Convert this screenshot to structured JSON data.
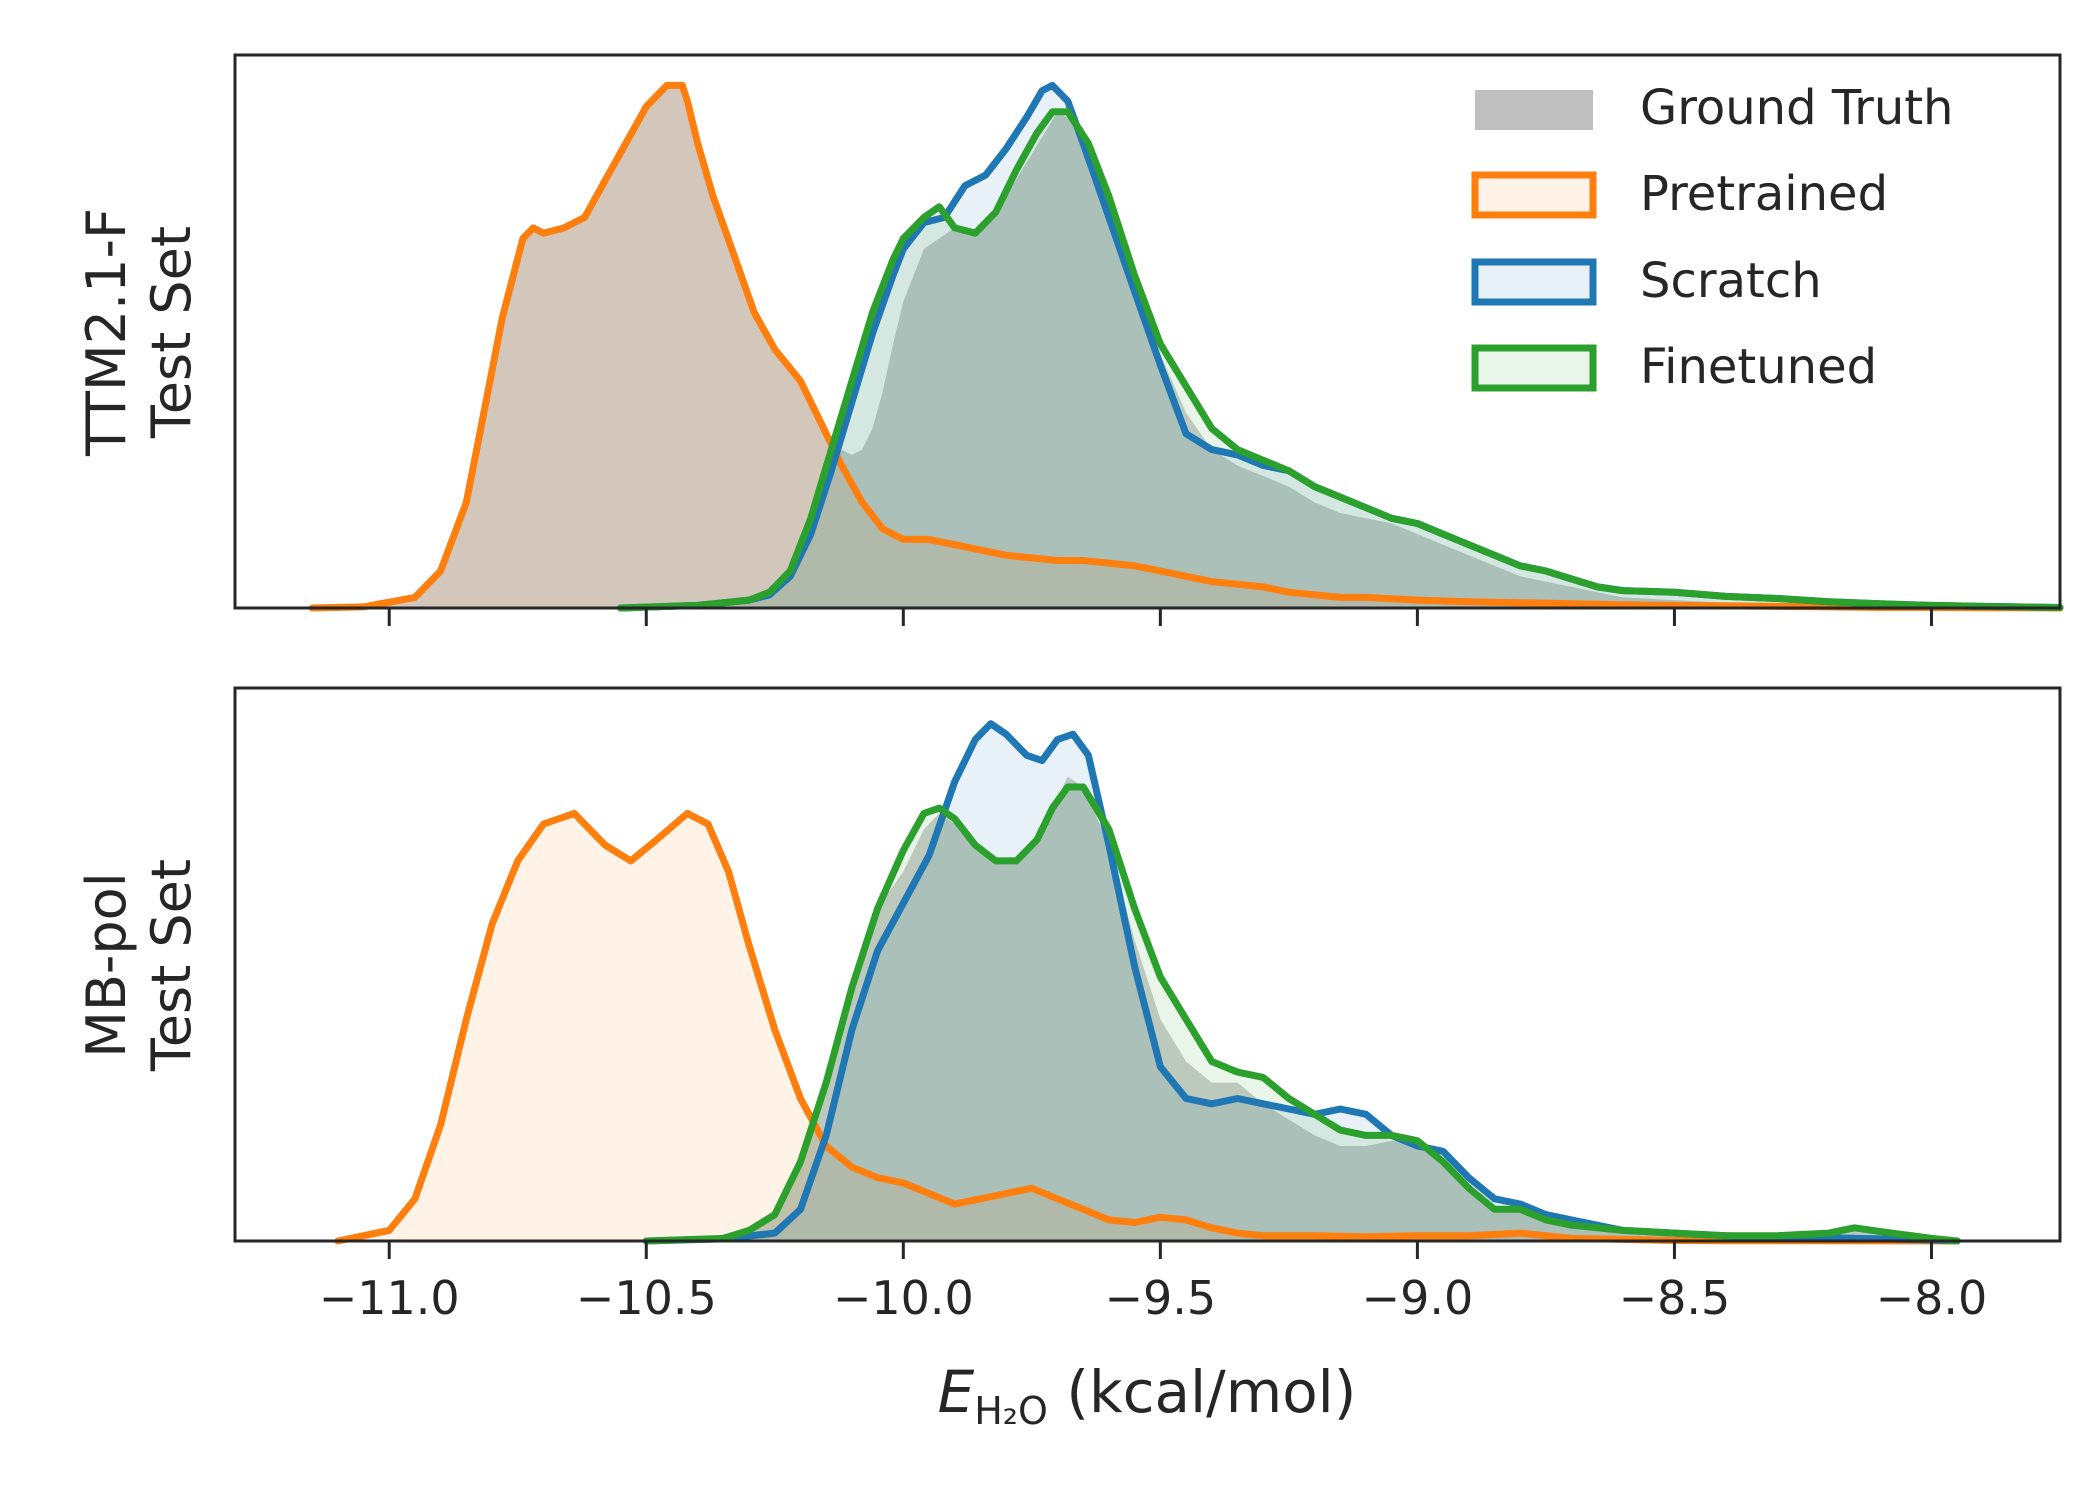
{
  "chart_data": [
    {
      "type": "area",
      "ylabel_line1": "TTM2.1-F",
      "ylabel_line2": "Test Set",
      "xlim": [
        -11.3,
        -7.75
      ],
      "grid": false,
      "legend": {
        "placement": "top-right",
        "entries": [
          {
            "name": "Ground Truth",
            "style": "filled-gray"
          },
          {
            "name": "Pretrained",
            "color": "#ff7f0e"
          },
          {
            "name": "Scratch",
            "color": "#1f77b4"
          },
          {
            "name": "Finetuned",
            "color": "#2ca02c"
          }
        ]
      },
      "series": [
        {
          "name": "Ground Truth",
          "color": "#9e9e9e",
          "fill_only": true,
          "x": [
            -11.15,
            -11.05,
            -10.95,
            -10.9,
            -10.85,
            -10.82,
            -10.78,
            -10.74,
            -10.72,
            -10.7,
            -10.66,
            -10.62,
            -10.58,
            -10.54,
            -10.5,
            -10.46,
            -10.43,
            -10.42,
            -10.4,
            -10.37,
            -10.33,
            -10.29,
            -10.25,
            -10.2,
            -10.16,
            -10.12,
            -10.1,
            -10.08,
            -10.06,
            -10.04,
            -10.02,
            -10.0,
            -9.96,
            -9.9,
            -9.85,
            -9.8,
            -9.75,
            -9.7,
            -9.65,
            -9.6,
            -9.55,
            -9.5,
            -9.45,
            -9.4,
            -9.35,
            -9.3,
            -9.25,
            -9.2,
            -9.15,
            -9.1,
            -9.05,
            -9.0,
            -8.95,
            -8.9,
            -8.85,
            -8.8,
            -8.75,
            -8.7,
            -8.65,
            -8.6,
            -8.5,
            -8.4,
            -8.3,
            -8.2,
            -8.1,
            -7.75
          ],
          "y": [
            0,
            0.002,
            0.02,
            0.07,
            0.2,
            0.35,
            0.55,
            0.7,
            0.72,
            0.71,
            0.72,
            0.74,
            0.81,
            0.88,
            0.95,
            0.99,
            0.99,
            0.96,
            0.88,
            0.78,
            0.67,
            0.56,
            0.49,
            0.43,
            0.35,
            0.3,
            0.29,
            0.3,
            0.34,
            0.41,
            0.5,
            0.58,
            0.68,
            0.72,
            0.71,
            0.78,
            0.86,
            0.94,
            0.91,
            0.78,
            0.62,
            0.48,
            0.37,
            0.3,
            0.27,
            0.25,
            0.23,
            0.2,
            0.18,
            0.17,
            0.16,
            0.14,
            0.12,
            0.1,
            0.08,
            0.06,
            0.05,
            0.04,
            0.03,
            0.02,
            0.015,
            0.01,
            0.007,
            0.005,
            0.004,
            0.002
          ]
        },
        {
          "name": "Pretrained",
          "color": "#ff7f0e",
          "x": [
            -11.15,
            -11.05,
            -10.95,
            -10.9,
            -10.85,
            -10.82,
            -10.78,
            -10.74,
            -10.72,
            -10.7,
            -10.66,
            -10.62,
            -10.58,
            -10.54,
            -10.5,
            -10.46,
            -10.43,
            -10.42,
            -10.4,
            -10.37,
            -10.33,
            -10.29,
            -10.25,
            -10.2,
            -10.16,
            -10.12,
            -10.08,
            -10.04,
            -10.0,
            -9.95,
            -9.9,
            -9.85,
            -9.8,
            -9.75,
            -9.7,
            -9.65,
            -9.6,
            -9.55,
            -9.5,
            -9.45,
            -9.4,
            -9.35,
            -9.3,
            -9.25,
            -9.2,
            -9.15,
            -9.1,
            -9.0,
            -8.9,
            -8.8,
            -8.7,
            -8.6,
            -8.5,
            -8.4,
            -8.3,
            -8.2,
            -8.1,
            -8.0,
            -7.9,
            -7.75
          ],
          "y": [
            0,
            0.002,
            0.02,
            0.07,
            0.2,
            0.35,
            0.55,
            0.7,
            0.72,
            0.71,
            0.72,
            0.74,
            0.81,
            0.88,
            0.95,
            0.99,
            0.99,
            0.96,
            0.88,
            0.78,
            0.67,
            0.56,
            0.49,
            0.43,
            0.35,
            0.27,
            0.2,
            0.15,
            0.13,
            0.13,
            0.12,
            0.11,
            0.1,
            0.095,
            0.09,
            0.09,
            0.085,
            0.08,
            0.07,
            0.06,
            0.05,
            0.045,
            0.04,
            0.03,
            0.025,
            0.02,
            0.02,
            0.015,
            0.012,
            0.01,
            0.008,
            0.006,
            0.005,
            0.004,
            0.003,
            0.002,
            0.001,
            0.001,
            0.0005,
            0
          ]
        },
        {
          "name": "Scratch",
          "color": "#1f77b4",
          "x": [
            -10.55,
            -10.4,
            -10.3,
            -10.26,
            -10.22,
            -10.18,
            -10.14,
            -10.1,
            -10.06,
            -10.02,
            -10.0,
            -9.96,
            -9.92,
            -9.88,
            -9.84,
            -9.8,
            -9.76,
            -9.73,
            -9.71,
            -9.68,
            -9.65,
            -9.6,
            -9.55,
            -9.5,
            -9.45,
            -9.4,
            -9.35,
            -9.3,
            -9.25,
            -9.2,
            -9.15,
            -9.1,
            -9.05,
            -9.0,
            -8.95,
            -8.9,
            -8.85,
            -8.8,
            -8.75,
            -8.7,
            -8.65,
            -8.6,
            -8.5,
            -8.4,
            -8.3,
            -8.2,
            -8.1,
            -8.0,
            -7.9,
            -7.75
          ],
          "y": [
            0,
            0.005,
            0.015,
            0.025,
            0.06,
            0.14,
            0.26,
            0.39,
            0.52,
            0.63,
            0.68,
            0.73,
            0.74,
            0.8,
            0.82,
            0.87,
            0.93,
            0.98,
            0.99,
            0.96,
            0.88,
            0.74,
            0.6,
            0.46,
            0.33,
            0.3,
            0.29,
            0.27,
            0.26,
            0.23,
            0.21,
            0.19,
            0.17,
            0.16,
            0.14,
            0.12,
            0.1,
            0.08,
            0.07,
            0.055,
            0.04,
            0.033,
            0.03,
            0.022,
            0.018,
            0.012,
            0.008,
            0.005,
            0.003,
            0.001
          ]
        },
        {
          "name": "Finetuned",
          "color": "#2ca02c",
          "x": [
            -10.55,
            -10.4,
            -10.3,
            -10.26,
            -10.22,
            -10.18,
            -10.14,
            -10.1,
            -10.06,
            -10.02,
            -10.0,
            -9.96,
            -9.93,
            -9.9,
            -9.86,
            -9.82,
            -9.78,
            -9.74,
            -9.71,
            -9.68,
            -9.64,
            -9.6,
            -9.55,
            -9.5,
            -9.45,
            -9.4,
            -9.35,
            -9.3,
            -9.25,
            -9.2,
            -9.15,
            -9.1,
            -9.05,
            -9.0,
            -8.95,
            -8.9,
            -8.85,
            -8.8,
            -8.75,
            -8.7,
            -8.65,
            -8.6,
            -8.5,
            -8.4,
            -8.3,
            -8.2,
            -8.1,
            -8.0,
            -7.9,
            -7.75
          ],
          "y": [
            0,
            0.005,
            0.015,
            0.03,
            0.07,
            0.17,
            0.3,
            0.43,
            0.56,
            0.66,
            0.7,
            0.74,
            0.76,
            0.72,
            0.71,
            0.75,
            0.83,
            0.9,
            0.94,
            0.94,
            0.88,
            0.78,
            0.63,
            0.5,
            0.42,
            0.34,
            0.3,
            0.28,
            0.26,
            0.23,
            0.21,
            0.19,
            0.17,
            0.16,
            0.14,
            0.12,
            0.1,
            0.08,
            0.07,
            0.055,
            0.04,
            0.033,
            0.03,
            0.022,
            0.018,
            0.012,
            0.008,
            0.005,
            0.003,
            0.001
          ]
        }
      ]
    },
    {
      "type": "area",
      "ylabel_line1": "MB-pol",
      "ylabel_line2": "Test Set",
      "xlabel_main": "E",
      "xlabel_sub": "H₂O",
      "xlabel_unit": " (kcal/mol)",
      "xlim": [
        -11.3,
        -7.75
      ],
      "grid": false,
      "x_ticks": [
        {
          "value": -11.0,
          "label": "−11.0"
        },
        {
          "value": -10.5,
          "label": "−10.5"
        },
        {
          "value": -10.0,
          "label": "−10.0"
        },
        {
          "value": -9.5,
          "label": "−9.5"
        },
        {
          "value": -9.0,
          "label": "−9.0"
        },
        {
          "value": -8.5,
          "label": "−8.5"
        },
        {
          "value": -8.0,
          "label": "−8.0"
        }
      ],
      "series": [
        {
          "name": "Ground Truth",
          "color": "#9e9e9e",
          "fill_only": true,
          "x": [
            -10.55,
            -10.4,
            -10.3,
            -10.25,
            -10.2,
            -10.15,
            -10.1,
            -10.05,
            -10.0,
            -9.96,
            -9.93,
            -9.9,
            -9.86,
            -9.82,
            -9.78,
            -9.74,
            -9.71,
            -9.68,
            -9.65,
            -9.6,
            -9.55,
            -9.5,
            -9.45,
            -9.4,
            -9.35,
            -9.3,
            -9.25,
            -9.2,
            -9.15,
            -9.1,
            -9.05,
            -9.0,
            -8.95,
            -8.9,
            -8.85,
            -8.8,
            -8.75,
            -8.7,
            -8.6,
            -8.5,
            -8.4,
            -8.3,
            -8.2,
            -8.15,
            -8.1,
            -8.0,
            -7.95
          ],
          "y": [
            0,
            0.005,
            0.02,
            0.05,
            0.15,
            0.3,
            0.48,
            0.63,
            0.7,
            0.78,
            0.81,
            0.79,
            0.75,
            0.72,
            0.72,
            0.76,
            0.82,
            0.88,
            0.86,
            0.75,
            0.57,
            0.42,
            0.34,
            0.3,
            0.3,
            0.26,
            0.23,
            0.2,
            0.18,
            0.18,
            0.19,
            0.19,
            0.15,
            0.1,
            0.06,
            0.06,
            0.04,
            0.03,
            0.02,
            0.015,
            0.01,
            0.01,
            0.015,
            0.025,
            0.018,
            0.005,
            0
          ]
        },
        {
          "name": "Pretrained",
          "color": "#ff7f0e",
          "x": [
            -11.1,
            -11.0,
            -10.95,
            -10.9,
            -10.85,
            -10.8,
            -10.75,
            -10.7,
            -10.64,
            -10.58,
            -10.53,
            -10.48,
            -10.42,
            -10.38,
            -10.34,
            -10.3,
            -10.25,
            -10.2,
            -10.15,
            -10.1,
            -10.05,
            -10.0,
            -9.95,
            -9.9,
            -9.85,
            -9.8,
            -9.75,
            -9.7,
            -9.65,
            -9.6,
            -9.55,
            -9.5,
            -9.45,
            -9.4,
            -9.35,
            -9.3,
            -9.2,
            -9.1,
            -9.0,
            -8.9,
            -8.8,
            -8.75,
            -8.7,
            -8.6,
            -8.5,
            -8.4,
            -7.95
          ],
          "y": [
            0,
            0.02,
            0.08,
            0.22,
            0.42,
            0.6,
            0.72,
            0.79,
            0.81,
            0.75,
            0.72,
            0.76,
            0.81,
            0.79,
            0.7,
            0.56,
            0.4,
            0.27,
            0.18,
            0.14,
            0.12,
            0.11,
            0.09,
            0.07,
            0.08,
            0.09,
            0.1,
            0.08,
            0.06,
            0.04,
            0.035,
            0.045,
            0.04,
            0.025,
            0.015,
            0.01,
            0.01,
            0.008,
            0.01,
            0.01,
            0.015,
            0.01,
            0.005,
            0.003,
            0.001,
            0.0005,
            0
          ]
        },
        {
          "name": "Scratch",
          "color": "#1f77b4",
          "x": [
            -10.5,
            -10.35,
            -10.25,
            -10.2,
            -10.15,
            -10.1,
            -10.05,
            -10.0,
            -9.95,
            -9.9,
            -9.86,
            -9.83,
            -9.8,
            -9.76,
            -9.73,
            -9.7,
            -9.67,
            -9.64,
            -9.6,
            -9.55,
            -9.5,
            -9.45,
            -9.4,
            -9.35,
            -9.3,
            -9.25,
            -9.2,
            -9.15,
            -9.1,
            -9.05,
            -9.0,
            -8.95,
            -8.9,
            -8.85,
            -8.8,
            -8.75,
            -8.7,
            -8.65,
            -8.6,
            -8.5,
            -8.4,
            -8.3,
            -8.2,
            -8.1,
            -8.0,
            -7.95
          ],
          "y": [
            0,
            0.004,
            0.015,
            0.06,
            0.2,
            0.4,
            0.55,
            0.64,
            0.73,
            0.87,
            0.95,
            0.98,
            0.96,
            0.92,
            0.91,
            0.95,
            0.96,
            0.92,
            0.75,
            0.52,
            0.33,
            0.27,
            0.26,
            0.27,
            0.26,
            0.25,
            0.24,
            0.25,
            0.24,
            0.2,
            0.18,
            0.17,
            0.12,
            0.08,
            0.07,
            0.05,
            0.04,
            0.03,
            0.02,
            0.015,
            0.01,
            0.008,
            0.006,
            0.004,
            0.002,
            0
          ]
        },
        {
          "name": "Finetuned",
          "color": "#2ca02c",
          "x": [
            -10.5,
            -10.35,
            -10.3,
            -10.25,
            -10.2,
            -10.15,
            -10.1,
            -10.05,
            -10.0,
            -9.96,
            -9.93,
            -9.9,
            -9.86,
            -9.82,
            -9.78,
            -9.74,
            -9.71,
            -9.68,
            -9.65,
            -9.6,
            -9.55,
            -9.5,
            -9.45,
            -9.4,
            -9.35,
            -9.3,
            -9.25,
            -9.2,
            -9.15,
            -9.1,
            -9.05,
            -9.0,
            -8.95,
            -8.9,
            -8.85,
            -8.8,
            -8.75,
            -8.7,
            -8.6,
            -8.5,
            -8.4,
            -8.3,
            -8.2,
            -8.15,
            -8.1,
            -8.0,
            -7.95
          ],
          "y": [
            0,
            0.005,
            0.02,
            0.05,
            0.15,
            0.3,
            0.48,
            0.63,
            0.74,
            0.81,
            0.82,
            0.8,
            0.75,
            0.72,
            0.72,
            0.76,
            0.82,
            0.86,
            0.86,
            0.78,
            0.63,
            0.5,
            0.42,
            0.34,
            0.32,
            0.31,
            0.27,
            0.24,
            0.21,
            0.2,
            0.2,
            0.19,
            0.15,
            0.1,
            0.06,
            0.06,
            0.04,
            0.03,
            0.02,
            0.015,
            0.01,
            0.01,
            0.015,
            0.025,
            0.018,
            0.005,
            0
          ]
        }
      ]
    }
  ]
}
